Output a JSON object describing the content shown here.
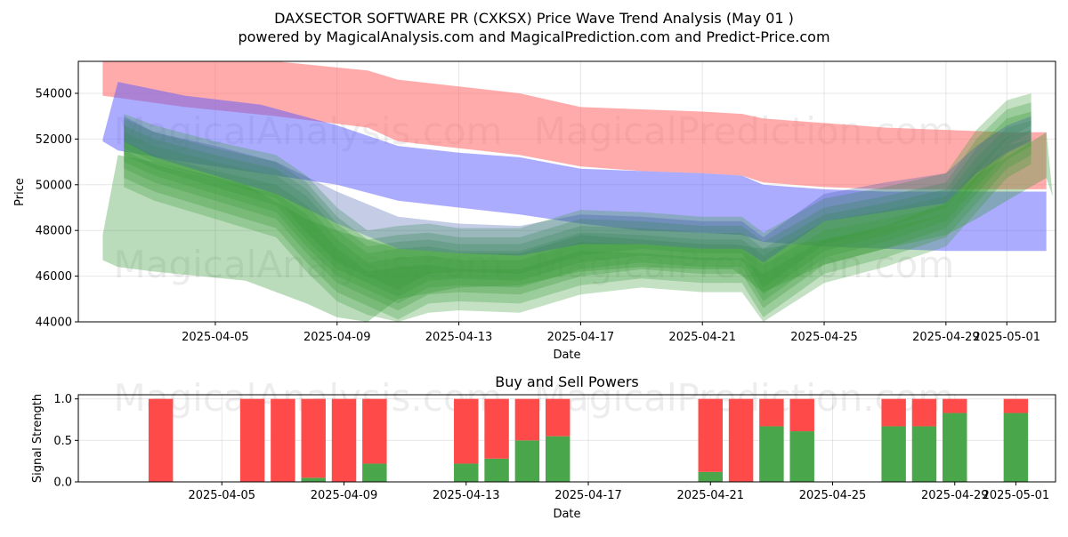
{
  "chart_data": [
    {
      "type": "area",
      "title": "DAXSECTOR SOFTWARE PR (CXKSX) Price Wave Trend Analysis (May 01 )",
      "subtitle": "powered by MagicalAnalysis.com and MagicalPrediction.com and Predict-Price.com",
      "xlabel": "Date",
      "ylabel": "Price",
      "ylim": [
        44000,
        55400
      ],
      "yticks": [
        44000,
        46000,
        48000,
        50000,
        52000,
        54000
      ],
      "yticklabels": [
        "44000",
        "46000",
        "48000",
        "50000",
        "52000",
        "54000"
      ],
      "xticks": [
        4,
        8,
        12,
        16,
        20,
        24,
        28,
        30
      ],
      "xticklabels": [
        "2025-04-05",
        "2025-04-09",
        "2025-04-13",
        "2025-04-17",
        "2025-04-21",
        "2025-04-25",
        "2025-04-29",
        "2025-05-01"
      ],
      "x_dates_note": "x values are day offsets from 2025-04-01",
      "grid": true,
      "watermarks": [
        "MagicalAnalysis.com",
        "MagicalPrediction.com",
        "MagicalAnalysis.com",
        "MagicalPrediction.com"
      ],
      "bands": [
        {
          "name": "upper-band",
          "color": "#ff6666",
          "opacity": 0.55,
          "x": [
            0.3,
            3,
            6,
            9,
            10,
            12,
            14,
            16,
            18,
            20,
            21.3,
            22,
            24,
            26,
            28,
            30,
            31.3
          ],
          "upper": [
            55400,
            55400,
            55400,
            55000,
            54600,
            54300,
            54000,
            53400,
            53300,
            53200,
            53100,
            52900,
            52700,
            52500,
            52400,
            52300,
            52300
          ],
          "lower": [
            53900,
            53400,
            53000,
            52500,
            51900,
            51600,
            51300,
            50800,
            50600,
            50500,
            50400,
            50100,
            49900,
            49800,
            49800,
            49800,
            49800
          ]
        },
        {
          "name": "middle-band",
          "color": "#5a5aff",
          "opacity": 0.5,
          "x": [
            0.3,
            0.8,
            3,
            5.5,
            8,
            10,
            12,
            14,
            16,
            18,
            20,
            21.3,
            22,
            24,
            26,
            28,
            30,
            31.3
          ],
          "upper": [
            52000,
            54500,
            53900,
            53500,
            52600,
            51700,
            51400,
            51200,
            50700,
            50600,
            50500,
            50400,
            50000,
            49800,
            49700,
            49700,
            49700,
            49700
          ],
          "lower": [
            51900,
            51500,
            51000,
            50500,
            50000,
            49300,
            49000,
            48700,
            48300,
            48000,
            47900,
            47800,
            47500,
            47300,
            47200,
            47100,
            47100,
            47100
          ]
        },
        {
          "name": "wave-band-wide",
          "color": "#3a9a3a",
          "opacity": 0.35,
          "x": [
            0.3,
            0.8,
            2,
            5,
            7,
            8,
            9,
            10,
            12,
            14,
            16,
            18,
            20,
            21,
            22,
            24,
            26,
            28,
            29,
            30,
            31.3,
            31.5
          ],
          "upper": [
            47800,
            51300,
            51000,
            50000,
            48500,
            48000,
            47600,
            47200,
            47000,
            47000,
            47800,
            47600,
            47400,
            47400,
            47200,
            47600,
            48200,
            49200,
            50400,
            51200,
            52300,
            49600
          ],
          "lower": [
            46700,
            46400,
            46200,
            45800,
            44800,
            44200,
            44000,
            45000,
            45500,
            45600,
            46200,
            46400,
            46300,
            46300,
            45300,
            46500,
            47200,
            47800,
            48500,
            49300,
            50300,
            49500
          ]
        },
        {
          "name": "wave-band-1",
          "color": "#3a9a3a",
          "opacity": 0.3,
          "x": [
            1,
            2,
            4,
            6,
            7,
            8,
            9,
            10,
            11,
            12,
            14,
            16,
            18,
            20,
            21.3,
            22,
            24,
            26,
            28,
            29,
            30,
            30.8
          ],
          "upper": [
            53100,
            52600,
            51900,
            51300,
            50400,
            49000,
            48000,
            48200,
            48300,
            48100,
            48100,
            48900,
            48800,
            48600,
            48600,
            47900,
            49400,
            49900,
            50500,
            52400,
            53700,
            54000
          ],
          "lower": [
            51600,
            51000,
            50200,
            49400,
            47900,
            46600,
            46000,
            45400,
            46100,
            46200,
            46100,
            46900,
            47200,
            47000,
            47000,
            45500,
            47400,
            48100,
            49000,
            50500,
            52000,
            52600
          ]
        },
        {
          "name": "wave-band-2",
          "color": "#3a9a3a",
          "opacity": 0.3,
          "x": [
            1,
            2,
            4,
            6,
            7,
            8,
            9,
            10,
            11,
            12,
            14,
            16,
            18,
            20,
            21.3,
            22,
            24,
            26,
            28,
            29,
            30,
            30.8
          ],
          "upper": [
            52900,
            52300,
            51600,
            51000,
            50100,
            48600,
            47600,
            47800,
            47900,
            47700,
            47700,
            48500,
            48400,
            48200,
            48200,
            47500,
            49000,
            49500,
            50100,
            52000,
            53300,
            53600
          ],
          "lower": [
            51300,
            50700,
            49900,
            49100,
            47600,
            46300,
            45700,
            45100,
            45800,
            45900,
            45800,
            46600,
            46900,
            46700,
            46700,
            45200,
            47100,
            47800,
            48700,
            50200,
            51700,
            52300
          ]
        },
        {
          "name": "wave-band-3",
          "color": "#3a9a3a",
          "opacity": 0.3,
          "x": [
            1,
            2,
            4,
            6,
            7,
            8,
            9,
            10,
            11,
            12,
            14,
            16,
            18,
            20,
            21.3,
            22,
            24,
            26,
            28,
            29,
            30,
            30.8
          ],
          "upper": [
            52600,
            52000,
            51300,
            50700,
            49800,
            48300,
            47300,
            47500,
            47600,
            47400,
            47400,
            48200,
            48100,
            47900,
            47900,
            47200,
            48700,
            49200,
            49800,
            51600,
            52900,
            53200
          ],
          "lower": [
            51000,
            50400,
            49600,
            48800,
            47300,
            46000,
            45400,
            44800,
            45500,
            45600,
            45500,
            46300,
            46600,
            46400,
            46400,
            44900,
            46800,
            47500,
            48400,
            49900,
            51400,
            52000
          ]
        },
        {
          "name": "wave-band-4",
          "color": "#3a9a3a",
          "opacity": 0.3,
          "x": [
            1,
            2,
            4,
            6,
            7,
            8,
            9,
            10,
            11,
            12,
            14,
            16,
            18,
            20,
            21.3,
            22,
            24,
            26,
            28,
            29,
            30,
            30.8
          ],
          "upper": [
            52300,
            51700,
            51000,
            50400,
            49500,
            48000,
            47000,
            47200,
            47300,
            47100,
            47100,
            47900,
            47800,
            47600,
            47600,
            46900,
            48400,
            48900,
            49500,
            51200,
            52500,
            52800
          ],
          "lower": [
            50700,
            50100,
            49300,
            48500,
            47000,
            45700,
            45100,
            44500,
            45200,
            45300,
            45200,
            46000,
            46300,
            46100,
            46100,
            44600,
            46500,
            47200,
            48100,
            49600,
            51100,
            51700
          ]
        },
        {
          "name": "wave-band-5",
          "color": "#3a9a3a",
          "opacity": 0.3,
          "x": [
            1,
            2,
            4,
            6,
            7,
            8,
            9,
            10,
            11,
            12,
            14,
            16,
            18,
            20,
            21.3,
            22,
            24,
            26,
            28,
            29,
            30,
            30.8
          ],
          "upper": [
            51900,
            51300,
            50600,
            50000,
            49100,
            47600,
            46600,
            46800,
            46900,
            46700,
            46700,
            47500,
            47400,
            47200,
            47200,
            46500,
            48000,
            48500,
            49100,
            50800,
            52100,
            52400
          ],
          "lower": [
            50300,
            49700,
            48900,
            48100,
            46600,
            45300,
            44700,
            44100,
            44800,
            44900,
            44800,
            45600,
            45900,
            45700,
            45700,
            44200,
            46100,
            46800,
            47700,
            49200,
            50700,
            51300
          ]
        },
        {
          "name": "wave-band-6",
          "color": "#3a9a3a",
          "opacity": 0.3,
          "x": [
            1,
            2,
            4,
            6,
            7,
            8,
            9,
            10,
            11,
            12,
            14,
            16,
            18,
            20,
            21.3,
            22,
            24,
            26,
            28,
            29,
            30,
            30.8
          ],
          "upper": [
            51500,
            50900,
            50200,
            49600,
            48700,
            47200,
            46200,
            46400,
            46500,
            46300,
            46300,
            47100,
            47000,
            46800,
            46800,
            46100,
            47600,
            48100,
            48700,
            50400,
            51700,
            52000
          ],
          "lower": [
            49900,
            49300,
            48500,
            47700,
            46200,
            44900,
            44300,
            44000,
            44400,
            44500,
            44400,
            45200,
            45500,
            45300,
            45300,
            44000,
            45700,
            46400,
            47300,
            48800,
            50300,
            50900
          ]
        },
        {
          "name": "blue-wave-band",
          "color": "#3a5aaa",
          "opacity": 0.3,
          "x": [
            1,
            2,
            4,
            6,
            8,
            10,
            12,
            14,
            16,
            18,
            20,
            21.3,
            22,
            24,
            26,
            28,
            29,
            30,
            30.8
          ],
          "upper": [
            53000,
            52300,
            51700,
            51000,
            49700,
            48600,
            48300,
            48200,
            48700,
            48600,
            48400,
            48400,
            47700,
            49600,
            50100,
            50500,
            51700,
            52600,
            53000
          ],
          "lower": [
            51900,
            51200,
            50400,
            49600,
            48300,
            47200,
            47000,
            46900,
            47400,
            47400,
            47200,
            47200,
            46600,
            48400,
            48800,
            49200,
            50500,
            51400,
            51900
          ]
        }
      ]
    },
    {
      "type": "bar",
      "title": "Buy and Sell Powers",
      "xlabel": "Date",
      "ylabel": "Signal Strength",
      "ylim": [
        0,
        1.05
      ],
      "yticks": [
        0.0,
        0.5,
        1.0
      ],
      "yticklabels": [
        "0.0",
        "0.5",
        "1.0"
      ],
      "xticks": [
        4,
        8,
        12,
        16,
        20,
        24,
        28,
        30
      ],
      "xticklabels": [
        "2025-04-05",
        "2025-04-09",
        "2025-04-13",
        "2025-04-17",
        "2025-04-21",
        "2025-04-25",
        "2025-04-29",
        "2025-05-01"
      ],
      "grid": true,
      "watermarks": [
        "MagicalAnalysis.com",
        "MagicalPrediction.com"
      ],
      "colors": {
        "buy": "#4aa64a",
        "sell": "#ff4a4a"
      },
      "x": [
        2,
        5,
        6,
        7,
        8,
        9,
        12,
        13,
        14,
        15,
        20,
        21,
        22,
        23,
        26,
        27,
        28,
        30
      ],
      "series": [
        {
          "name": "Buy",
          "values": [
            0.0,
            0.0,
            0.0,
            0.05,
            0.0,
            0.22,
            0.22,
            0.28,
            0.5,
            0.55,
            0.12,
            0.0,
            0.67,
            0.61,
            0.67,
            0.67,
            0.83,
            0.83
          ]
        },
        {
          "name": "Sell",
          "values": [
            1.0,
            1.0,
            1.0,
            0.95,
            1.0,
            0.78,
            0.78,
            0.72,
            0.5,
            0.45,
            0.88,
            1.0,
            0.33,
            0.39,
            0.33,
            0.33,
            0.17,
            0.17
          ]
        }
      ]
    }
  ]
}
